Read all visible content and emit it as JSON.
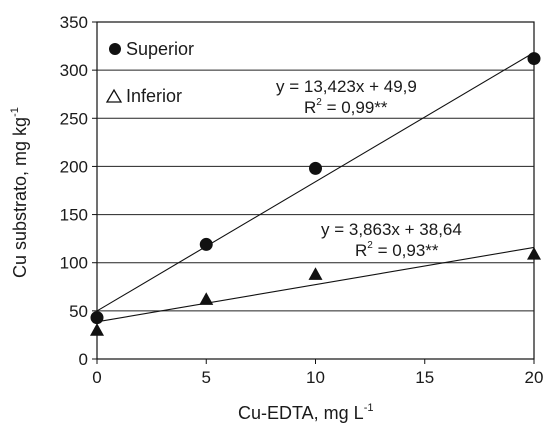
{
  "chart_data": {
    "type": "scatter",
    "xlabel": "Cu-EDTA, mg L",
    "xlabel_sup": "-1",
    "ylabel": "Cu substrato, mg kg",
    "ylabel_sup": "-1",
    "xlim": [
      0,
      20
    ],
    "ylim": [
      0,
      350
    ],
    "xticks": [
      0,
      5,
      10,
      15,
      20
    ],
    "yticks": [
      0,
      50,
      100,
      150,
      200,
      250,
      300,
      350
    ],
    "grid": "horizontal",
    "legend_position": "top-left",
    "series": [
      {
        "name": "Superior",
        "marker": "circle",
        "points": [
          [
            0,
            43
          ],
          [
            5,
            119
          ],
          [
            10,
            198
          ],
          [
            20,
            312
          ]
        ],
        "fit": {
          "slope": 13.423,
          "intercept": 49.9
        },
        "equation": "y = 13,423x + 49,9",
        "r2_label": "R",
        "r2_value": " = 0,99**"
      },
      {
        "name": "Inferior",
        "marker": "triangle",
        "points": [
          [
            0,
            30
          ],
          [
            5,
            62
          ],
          [
            10,
            88
          ],
          [
            20,
            109
          ]
        ],
        "fit": {
          "slope": 3.863,
          "intercept": 38.64
        },
        "equation": "y = 3,863x + 38,64",
        "r2_label": "R",
        "r2_value": " = 0,93**"
      }
    ],
    "colors": {
      "marks": "#111111",
      "grid": "#222222",
      "axis": "#111111"
    }
  }
}
